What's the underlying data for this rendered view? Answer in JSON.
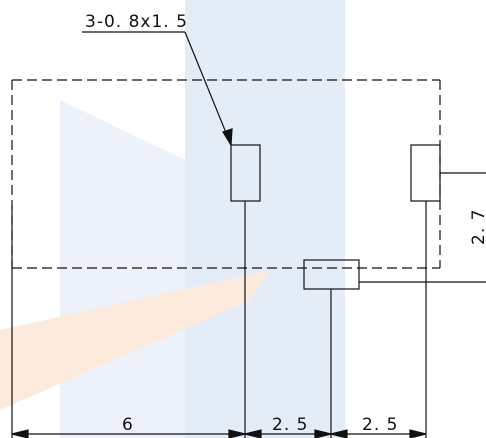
{
  "drawing": {
    "callout_label": "3-0. 8x1. 5",
    "dim_bottom_1": "6",
    "dim_bottom_2": "2. 5",
    "dim_bottom_3": "2. 5",
    "dim_right_partial": "2. 7"
  },
  "colors": {
    "line": "#111111",
    "watermark_blue": "#dbe6f4",
    "watermark_orange": "#fbe6d2"
  }
}
